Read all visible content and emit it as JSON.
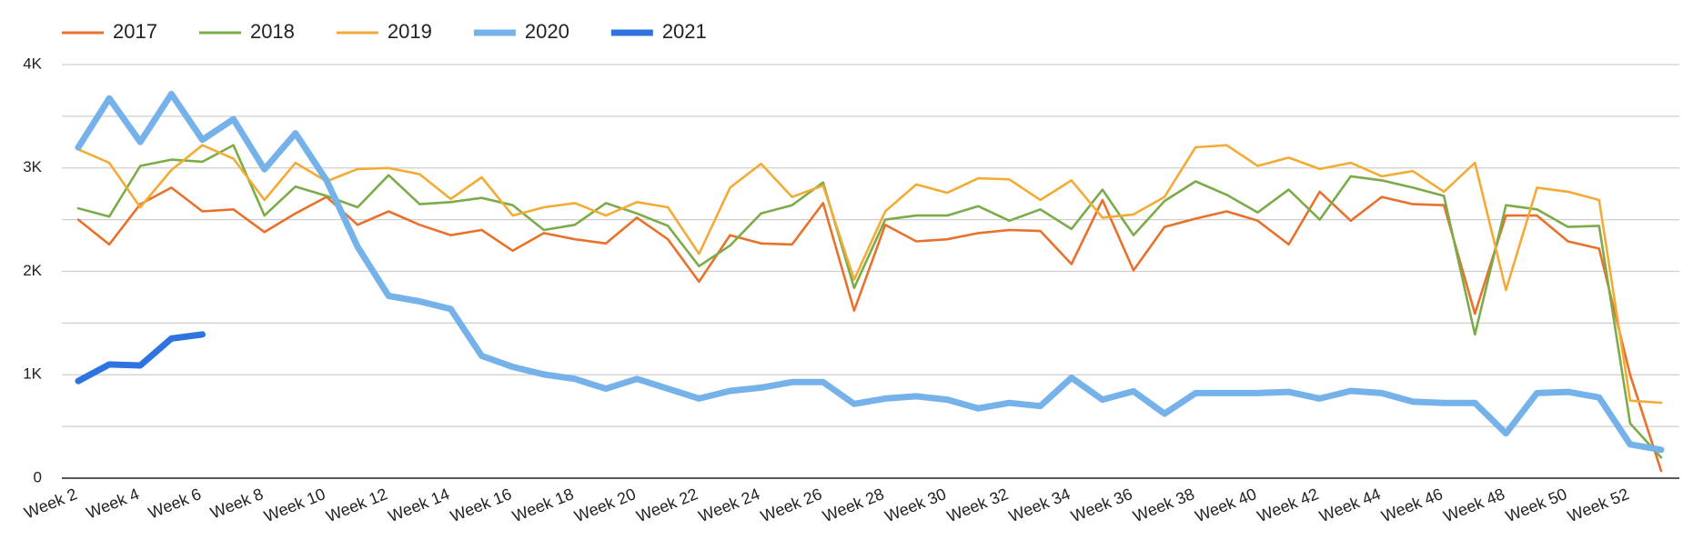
{
  "chart_data": {
    "type": "line",
    "categories": [
      "Week 2",
      null,
      "Week 4",
      null,
      "Week 6",
      null,
      "Week 8",
      null,
      "Week 10",
      null,
      "Week 12",
      null,
      "Week 14",
      null,
      "Week 16",
      null,
      "Week 18",
      null,
      "Week 20",
      null,
      "Week 22",
      null,
      "Week 24",
      null,
      "Week 26",
      null,
      "Week 28",
      null,
      "Week 30",
      null,
      "Week 32",
      null,
      "Week 34",
      null,
      "Week 36",
      null,
      "Week 38",
      null,
      "Week 40",
      null,
      "Week 42",
      null,
      "Week 44",
      null,
      "Week 46",
      null,
      "Week 48",
      null,
      "Week 50",
      null,
      "Week 52",
      null
    ],
    "series": [
      {
        "name": "2017",
        "color": "#e8712c",
        "values": [
          2500,
          2260,
          2650,
          2810,
          2580,
          2600,
          2380,
          2560,
          2720,
          2450,
          2580,
          2450,
          2350,
          2400,
          2200,
          2370,
          2310,
          2270,
          2520,
          2310,
          1900,
          2350,
          2270,
          2260,
          2660,
          1620,
          2450,
          2290,
          2310,
          2370,
          2400,
          2390,
          2070,
          2690,
          2010,
          2430,
          2510,
          2580,
          2490,
          2260,
          2770,
          2490,
          2720,
          2650,
          2640,
          1590,
          2540,
          2540,
          2290,
          2220,
          1000,
          70
        ]
      },
      {
        "name": "2018",
        "color": "#7cab4a",
        "values": [
          2610,
          2530,
          3020,
          3080,
          3060,
          3220,
          2540,
          2820,
          2730,
          2620,
          2930,
          2650,
          2670,
          2710,
          2640,
          2400,
          2450,
          2660,
          2560,
          2440,
          2050,
          2250,
          2560,
          2640,
          2860,
          1840,
          2500,
          2540,
          2540,
          2630,
          2490,
          2600,
          2410,
          2790,
          2350,
          2680,
          2870,
          2740,
          2570,
          2790,
          2500,
          2920,
          2880,
          2810,
          2730,
          1390,
          2640,
          2600,
          2430,
          2440,
          530,
          200
        ]
      },
      {
        "name": "2019",
        "color": "#f4ab35",
        "values": [
          3180,
          3050,
          2620,
          2980,
          3220,
          3090,
          2690,
          3050,
          2870,
          2990,
          3000,
          2940,
          2700,
          2910,
          2540,
          2620,
          2660,
          2540,
          2670,
          2620,
          2170,
          2810,
          3040,
          2720,
          2830,
          1920,
          2580,
          2840,
          2760,
          2900,
          2890,
          2690,
          2880,
          2520,
          2550,
          2720,
          3200,
          3220,
          3020,
          3100,
          2990,
          3050,
          2920,
          2970,
          2770,
          3050,
          1820,
          2810,
          2770,
          2690,
          750,
          730
        ]
      },
      {
        "name": "2020",
        "color": "#75b2ea",
        "values": [
          3198,
          3673,
          3251,
          3715,
          3272,
          3472,
          2987,
          3335,
          2881,
          2237,
          1763,
          1710,
          1636,
          1182,
          1076,
          1003,
          960,
          865,
          960,
          865,
          770,
          844,
          876,
          929,
          929,
          718,
          770,
          792,
          760,
          675,
          728,
          697,
          971,
          760,
          840,
          623,
          823,
          823,
          823,
          834,
          770,
          844,
          823,
          739,
          728,
          728,
          433,
          823,
          834,
          781,
          327,
          274
        ]
      },
      {
        "name": "2021",
        "color": "#2f73e0",
        "values": [
          940,
          1100,
          1090,
          1350,
          1390,
          null,
          null,
          null,
          null,
          null,
          null,
          null,
          null,
          null,
          null,
          null,
          null,
          null,
          null,
          null,
          null,
          null,
          null,
          null,
          null,
          null,
          null,
          null,
          null,
          null,
          null,
          null,
          null,
          null,
          null,
          null,
          null,
          null,
          null,
          null,
          null,
          null,
          null,
          null,
          null,
          null,
          null,
          null,
          null,
          null,
          null,
          null
        ]
      }
    ],
    "ylim": [
      0,
      4000
    ],
    "yticks": [
      0,
      {
        "value": 1000,
        "label": "1K"
      },
      {
        "value": 2000,
        "label": "2K"
      },
      {
        "value": 3000,
        "label": "3K"
      },
      {
        "value": 4000,
        "label": "4K"
      }
    ],
    "minor_yticks": [
      500,
      1500,
      2500,
      3500
    ],
    "grid": true,
    "legend": "top-left"
  }
}
